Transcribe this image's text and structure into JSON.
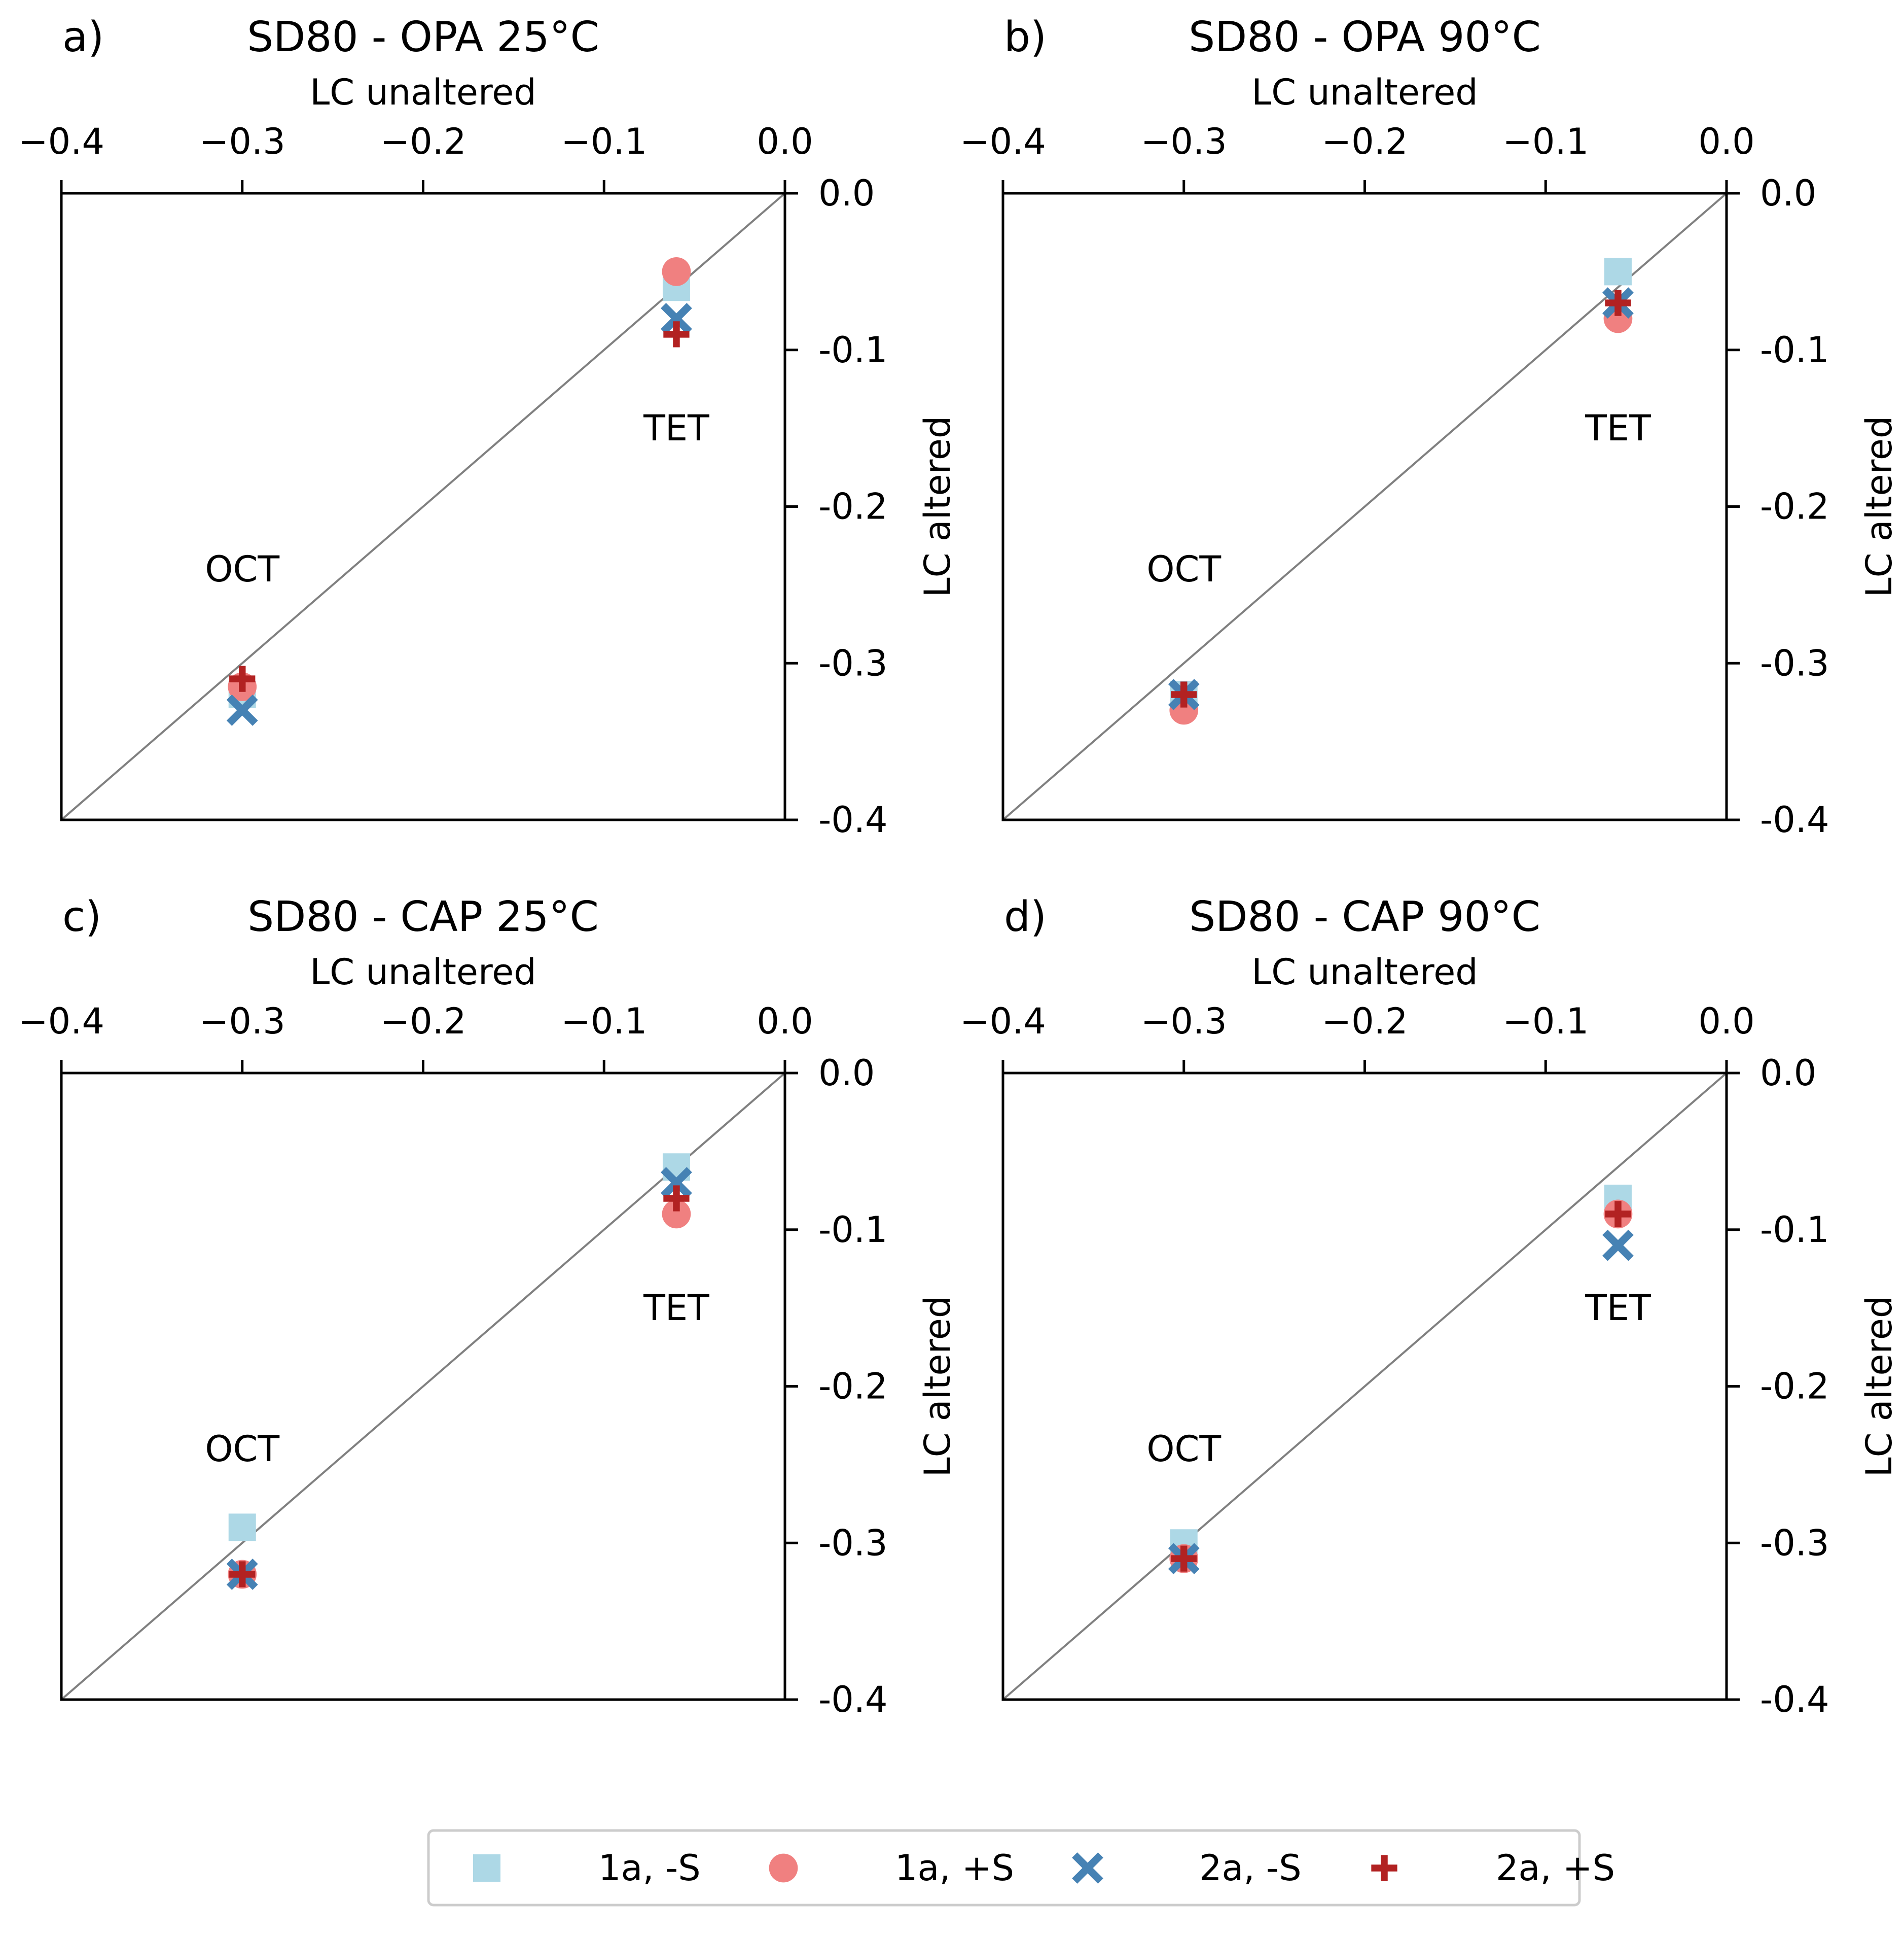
{
  "chart_data": [
    {
      "type": "scatter",
      "panel_label": "a)",
      "title": "SD80 - OPA 25°C",
      "xlabel": "LC unaltered",
      "ylabel": "LC altered",
      "xlim": [
        -0.4,
        0.0
      ],
      "ylim": [
        -0.4,
        0.0
      ],
      "xticks": [
        "−0.4",
        "−0.3",
        "−0.2",
        "−0.1",
        "0.0"
      ],
      "yticks": [
        "0.0",
        "-0.1",
        "-0.2",
        "-0.3",
        "-0.4"
      ],
      "identity_line": true,
      "annotations": [
        {
          "text": "TET",
          "x": -0.06,
          "y": -0.15
        },
        {
          "text": "OCT",
          "x": -0.3,
          "y": -0.24
        }
      ],
      "series": [
        {
          "name": "1a, -S",
          "points": [
            [
              -0.06,
              -0.06
            ],
            [
              -0.3,
              -0.32
            ]
          ]
        },
        {
          "name": "1a, +S",
          "points": [
            [
              -0.06,
              -0.05
            ],
            [
              -0.3,
              -0.315
            ]
          ]
        },
        {
          "name": "2a, -S",
          "points": [
            [
              -0.06,
              -0.08
            ],
            [
              -0.3,
              -0.33
            ]
          ]
        },
        {
          "name": "2a, +S",
          "points": [
            [
              -0.06,
              -0.09
            ],
            [
              -0.3,
              -0.31
            ]
          ]
        }
      ]
    },
    {
      "type": "scatter",
      "panel_label": "b)",
      "title": "SD80 - OPA 90°C",
      "xlabel": "LC unaltered",
      "ylabel": "LC altered",
      "xlim": [
        -0.4,
        0.0
      ],
      "ylim": [
        -0.4,
        0.0
      ],
      "xticks": [
        "−0.4",
        "−0.3",
        "−0.2",
        "−0.1",
        "0.0"
      ],
      "yticks": [
        "0.0",
        "-0.1",
        "-0.2",
        "-0.3",
        "-0.4"
      ],
      "identity_line": true,
      "annotations": [
        {
          "text": "TET",
          "x": -0.06,
          "y": -0.15
        },
        {
          "text": "OCT",
          "x": -0.3,
          "y": -0.24
        }
      ],
      "series": [
        {
          "name": "1a, -S",
          "points": [
            [
              -0.06,
              -0.05
            ],
            [
              -0.3,
              -0.32
            ]
          ]
        },
        {
          "name": "1a, +S",
          "points": [
            [
              -0.06,
              -0.08
            ],
            [
              -0.3,
              -0.33
            ]
          ]
        },
        {
          "name": "2a, -S",
          "points": [
            [
              -0.06,
              -0.07
            ],
            [
              -0.3,
              -0.32
            ]
          ]
        },
        {
          "name": "2a, +S",
          "points": [
            [
              -0.06,
              -0.07
            ],
            [
              -0.3,
              -0.32
            ]
          ]
        }
      ]
    },
    {
      "type": "scatter",
      "panel_label": "c)",
      "title": "SD80 - CAP 25°C",
      "xlabel": "LC unaltered",
      "ylabel": "LC altered",
      "xlim": [
        -0.4,
        0.0
      ],
      "ylim": [
        -0.4,
        0.0
      ],
      "xticks": [
        "−0.4",
        "−0.3",
        "−0.2",
        "−0.1",
        "0.0"
      ],
      "yticks": [
        "0.0",
        "-0.1",
        "-0.2",
        "-0.3",
        "-0.4"
      ],
      "identity_line": true,
      "annotations": [
        {
          "text": "TET",
          "x": -0.06,
          "y": -0.15
        },
        {
          "text": "OCT",
          "x": -0.3,
          "y": -0.24
        }
      ],
      "series": [
        {
          "name": "1a, -S",
          "points": [
            [
              -0.06,
              -0.06
            ],
            [
              -0.3,
              -0.29
            ]
          ]
        },
        {
          "name": "1a, +S",
          "points": [
            [
              -0.06,
              -0.09
            ],
            [
              -0.3,
              -0.32
            ]
          ]
        },
        {
          "name": "2a, -S",
          "points": [
            [
              -0.06,
              -0.07
            ],
            [
              -0.3,
              -0.32
            ]
          ]
        },
        {
          "name": "2a, +S",
          "points": [
            [
              -0.06,
              -0.08
            ],
            [
              -0.3,
              -0.32
            ]
          ]
        }
      ]
    },
    {
      "type": "scatter",
      "panel_label": "d)",
      "title": "SD80 - CAP 90°C",
      "xlabel": "LC unaltered",
      "ylabel": "LC altered",
      "xlim": [
        -0.4,
        0.0
      ],
      "ylim": [
        -0.4,
        0.0
      ],
      "xticks": [
        "−0.4",
        "−0.3",
        "−0.2",
        "−0.1",
        "0.0"
      ],
      "yticks": [
        "0.0",
        "-0.1",
        "-0.2",
        "-0.3",
        "-0.4"
      ],
      "identity_line": true,
      "annotations": [
        {
          "text": "TET",
          "x": -0.06,
          "y": -0.15
        },
        {
          "text": "OCT",
          "x": -0.3,
          "y": -0.24
        }
      ],
      "series": [
        {
          "name": "1a, -S",
          "points": [
            [
              -0.06,
              -0.08
            ],
            [
              -0.3,
              -0.3
            ]
          ]
        },
        {
          "name": "1a, +S",
          "points": [
            [
              -0.06,
              -0.09
            ],
            [
              -0.3,
              -0.31
            ]
          ]
        },
        {
          "name": "2a, -S",
          "points": [
            [
              -0.06,
              -0.11
            ],
            [
              -0.3,
              -0.31
            ]
          ]
        },
        {
          "name": "2a, +S",
          "points": [
            [
              -0.06,
              -0.09
            ],
            [
              -0.3,
              -0.31
            ]
          ]
        }
      ]
    }
  ],
  "legend": {
    "placement": "bottom-center",
    "entries": [
      {
        "label": "1a, -S",
        "marker": "square",
        "color": "#add8e6"
      },
      {
        "label": "1a, +S",
        "marker": "circle",
        "color": "#f08080"
      },
      {
        "label": "2a, -S",
        "marker": "x",
        "color": "#4682b4"
      },
      {
        "label": "2a, +S",
        "marker": "plus",
        "color": "#b22222"
      }
    ]
  },
  "colors": {
    "axis": "#000000",
    "identity_line": "#808080",
    "legend_border": "#cccccc"
  }
}
